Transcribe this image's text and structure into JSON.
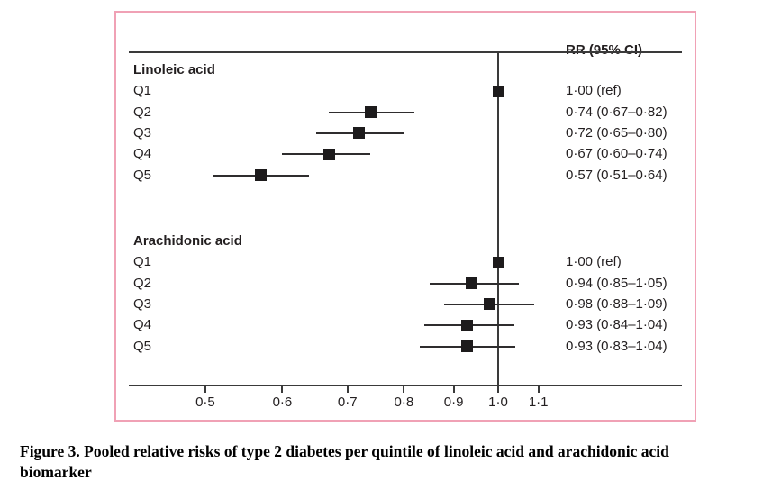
{
  "chart_data": {
    "type": "scatter",
    "subtype": "forest-plot",
    "title": "",
    "column_header": "RR (95% CI)",
    "xlabel": "",
    "ylabel": "",
    "x_scale": "log",
    "xlim": [
      0.42,
      1.55
    ],
    "reference_line": 1.0,
    "grid": false,
    "legend": "none",
    "x_ticks": [
      {
        "label": "0·5",
        "value": 0.5
      },
      {
        "label": "0·6",
        "value": 0.6
      },
      {
        "label": "0·7",
        "value": 0.7
      },
      {
        "label": "0·8",
        "value": 0.8
      },
      {
        "label": "0·9",
        "value": 0.9
      },
      {
        "label": "1·0",
        "value": 1.0
      },
      {
        "label": "1·1",
        "value": 1.1
      }
    ],
    "groups": [
      {
        "label": "Linoleic acid",
        "rows": [
          {
            "label": "Q1",
            "rr": 1.0,
            "lo": null,
            "hi": null,
            "text": "1·00 (ref)"
          },
          {
            "label": "Q2",
            "rr": 0.74,
            "lo": 0.67,
            "hi": 0.82,
            "text": "0·74 (0·67–0·82)"
          },
          {
            "label": "Q3",
            "rr": 0.72,
            "lo": 0.65,
            "hi": 0.8,
            "text": "0·72 (0·65–0·80)"
          },
          {
            "label": "Q4",
            "rr": 0.67,
            "lo": 0.6,
            "hi": 0.74,
            "text": "0·67 (0·60–0·74)"
          },
          {
            "label": "Q5",
            "rr": 0.57,
            "lo": 0.51,
            "hi": 0.64,
            "text": "0·57 (0·51–0·64)"
          }
        ]
      },
      {
        "label": "Arachidonic acid",
        "rows": [
          {
            "label": "Q1",
            "rr": 1.0,
            "lo": null,
            "hi": null,
            "text": "1·00 (ref)"
          },
          {
            "label": "Q2",
            "rr": 0.94,
            "lo": 0.85,
            "hi": 1.05,
            "text": "0·94 (0·85–1·05)"
          },
          {
            "label": "Q3",
            "rr": 0.98,
            "lo": 0.88,
            "hi": 1.09,
            "text": "0·98 (0·88–1·09)"
          },
          {
            "label": "Q4",
            "rr": 0.93,
            "lo": 0.84,
            "hi": 1.04,
            "text": "0·93 (0·84–1·04)"
          },
          {
            "label": "Q5",
            "rr": 0.93,
            "lo": 0.83,
            "hi": 1.04,
            "text": "0·93 (0·83–1·04)"
          }
        ]
      }
    ]
  },
  "colors": {
    "border_pink": "#f0a1b5",
    "ink": "#231f20",
    "marker": "#1d1b1c"
  },
  "caption": {
    "line1": "Figure 3. Pooled relative risks of type 2 diabetes per quintile of linoleic acid and arachidonic acid",
    "line2": "biomarker"
  }
}
